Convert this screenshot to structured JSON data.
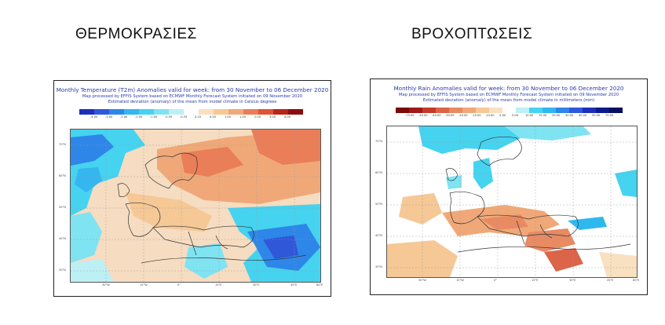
{
  "headings": {
    "left": "ΘΕΡΜΟΚΡΑΣΙΕΣ",
    "right": "ΒΡΟΧΟΠΤΩΣΕΙΣ"
  },
  "temperature_map": {
    "title": "Monthly Temperature (T2m) Anomalies valid for week: from 30 November to 06 December 2020",
    "subtitle1": "Map processed by EFFIS System based on ECMWF Monthly Forecast System initiated on 09 November 2020",
    "subtitle2": "Estimated deviation (anomaly) of the mean from model climate in Celsius degrees",
    "legend_labels": [
      "-4.00",
      "-3.00",
      "-2.00",
      "-1.50",
      "-1.00",
      "-0.50",
      "-0.25",
      "0.25",
      "0.50",
      "1.00",
      "1.50",
      "2.00",
      "3.00",
      "4.00"
    ],
    "legend_colors": [
      "#1c2fb8",
      "#2f57d8",
      "#2e86e8",
      "#35b6ef",
      "#45d3f0",
      "#7fe3f2",
      "#bdf0f5",
      "#ffffff",
      "#f8e0c0",
      "#f5c896",
      "#f0a878",
      "#e97e58",
      "#dd5438",
      "#b82418",
      "#8b0e0e"
    ],
    "lon_labels": [
      "30°W",
      "15°W",
      "0°",
      "15°E",
      "30°E",
      "45°E",
      "60°E"
    ],
    "lat_labels": [
      "70°N",
      "60°N",
      "50°N",
      "40°N",
      "30°N"
    ]
  },
  "rain_map": {
    "title": "Monthly Rain Anomalies valid for week: from 30 November to 06 December 2020",
    "subtitle1": "Map processed by EFFIS System based on ECMWF Monthly Forecast System initiated on 09 November 2020",
    "subtitle2": "Estimated deviation (anomaly) of the mean from model climate in millimeters (mm)",
    "legend_labels": [
      "-75.00",
      "-50.00",
      "-40.00",
      "-30.00",
      "-20.00",
      "-15.00",
      "-10.00",
      "-5.00",
      "5.00",
      "10.00",
      "15.00",
      "20.00",
      "30.00",
      "40.00",
      "50.00",
      "75.00"
    ],
    "legend_colors": [
      "#7a0a0a",
      "#a01818",
      "#c43a2a",
      "#dc6448",
      "#e88a62",
      "#f0a878",
      "#f5c896",
      "#f8e0c0",
      "#ffffff",
      "#bdf0f5",
      "#45d3f0",
      "#2fb8ee",
      "#2e86e8",
      "#2f57d8",
      "#1c2fb8",
      "#0d1a8a",
      "#080f5e"
    ],
    "lon_labels": [
      "30°W",
      "15°W",
      "0°",
      "15°E",
      "30°E",
      "45°E",
      "60°E"
    ],
    "lat_labels": [
      "70°N",
      "60°N",
      "50°N",
      "40°N",
      "30°N"
    ]
  }
}
